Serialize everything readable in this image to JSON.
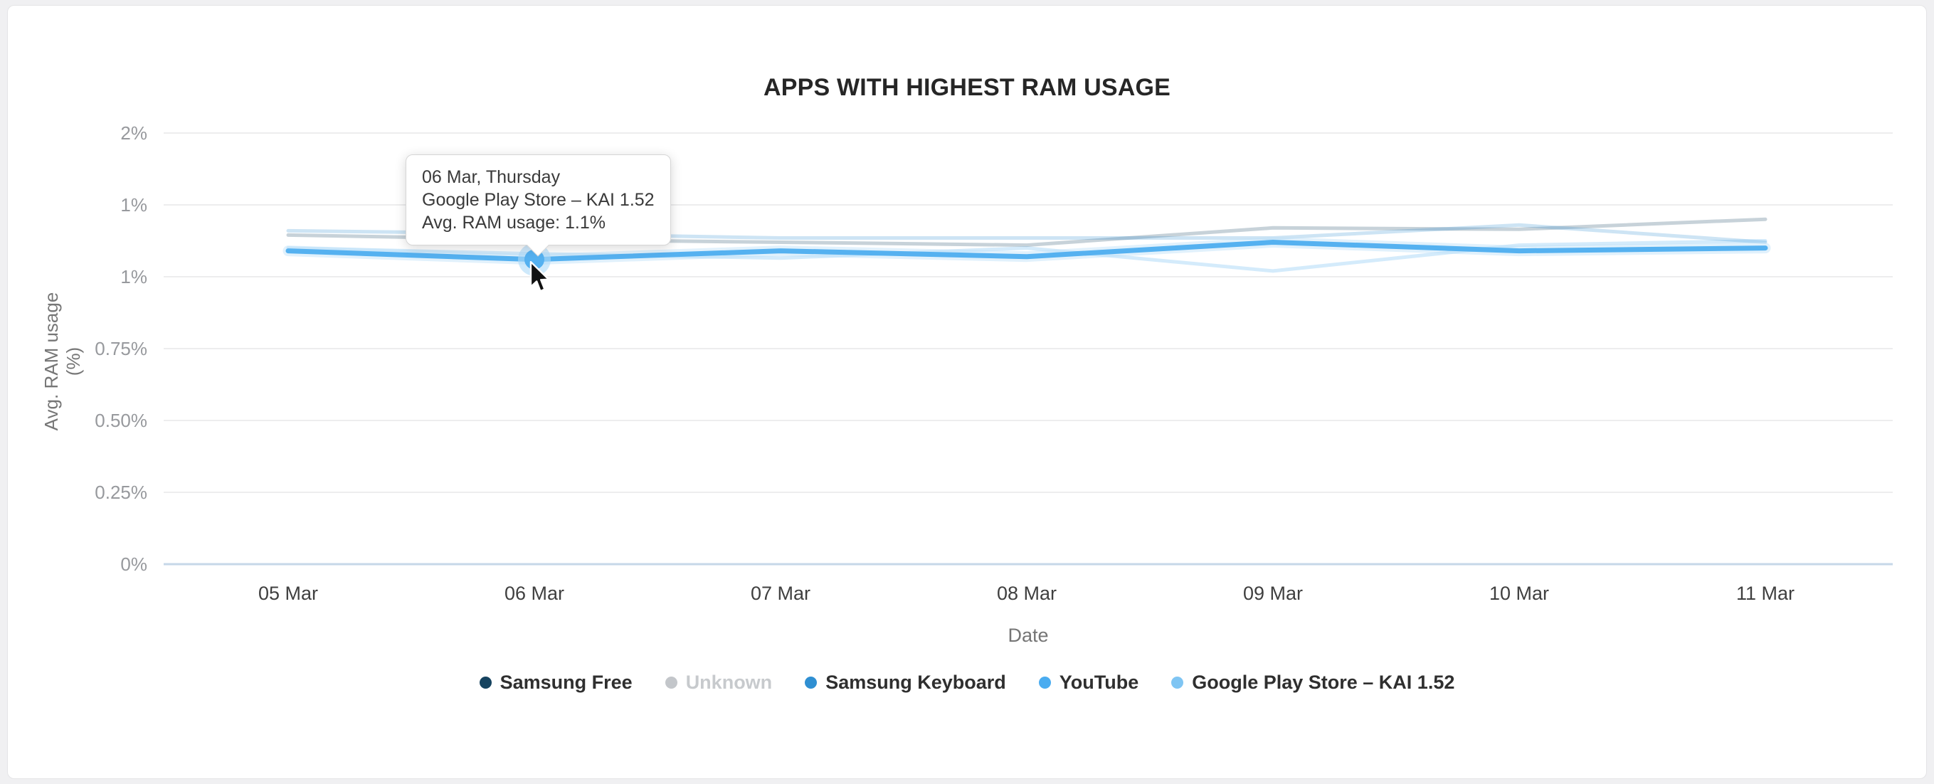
{
  "page": {
    "background": "#f0f0f2",
    "card_background": "#ffffff"
  },
  "chart": {
    "title": "APPS WITH HIGHEST RAM USAGE",
    "x_axis_label": "Date",
    "y_axis_label": "Avg. RAM usage (%)"
  },
  "tooltip": {
    "date_label": "06 Mar, Thursday",
    "series_label": "Google Play Store – KAI 1.52",
    "value_label": "Avg. RAM usage: 1.1%"
  },
  "legend": {
    "items": [
      {
        "label": "Samsung Free",
        "color": "#16435f",
        "label_color": "#2f2f2f",
        "disabled": false
      },
      {
        "label": "Unknown",
        "color": "#c3c6ca",
        "label_color": "#c7cacd",
        "disabled": true
      },
      {
        "label": "Samsung Keyboard",
        "color": "#2f8fd2",
        "label_color": "#2f2f2f",
        "disabled": false
      },
      {
        "label": "YouTube",
        "color": "#4aacf0",
        "label_color": "#2f2f2f",
        "disabled": false
      },
      {
        "label": "Google Play Store – KAI 1.52",
        "color": "#7fc5f3",
        "label_color": "#2f2f2f",
        "disabled": false
      }
    ]
  },
  "chart_data": {
    "type": "line",
    "title": "APPS WITH HIGHEST RAM USAGE",
    "xlabel": "Date",
    "ylabel": "Avg. RAM usage (%)",
    "categories": [
      "05 Mar",
      "06 Mar",
      "07 Mar",
      "08 Mar",
      "09 Mar",
      "10 Mar",
      "11 Mar"
    ],
    "y_ticks": [
      {
        "value": 0,
        "label": "0%"
      },
      {
        "value": 0.25,
        "label": "0.25%"
      },
      {
        "value": 0.5,
        "label": "0.50%"
      },
      {
        "value": 0.75,
        "label": "0.75%"
      },
      {
        "value": 1.0,
        "label": "1%"
      },
      {
        "value": 1.25,
        "label": "1%"
      },
      {
        "value": 1.5,
        "label": "2%"
      }
    ],
    "ylim": [
      0,
      1.5
    ],
    "grid": "horizontal",
    "legend_position": "bottom",
    "grid_color": "#ededee",
    "axis_line_color": "#c6d7e8",
    "highlighted_series": "Google Play Store – KAI 1.52",
    "highlighted_point": {
      "series": "Google Play Store – KAI 1.52",
      "category": "06 Mar",
      "value": 1.06,
      "display_value": "1.1%"
    },
    "series": [
      {
        "name": "Samsung Free",
        "color": "#16435f",
        "dimmed": true,
        "hidden": false,
        "values": [
          1.145,
          1.13,
          1.12,
          1.11,
          1.17,
          1.165,
          1.2
        ]
      },
      {
        "name": "Unknown",
        "color": "#c3c6ca",
        "dimmed": false,
        "hidden": true,
        "values": []
      },
      {
        "name": "Samsung Keyboard",
        "color": "#2f8fd2",
        "dimmed": true,
        "hidden": false,
        "values": [
          1.16,
          1.15,
          1.135,
          1.135,
          1.135,
          1.18,
          1.12
        ]
      },
      {
        "name": "YouTube",
        "color": "#4aacf0",
        "dimmed": true,
        "hidden": false,
        "values": [
          1.1,
          1.08,
          1.065,
          1.1,
          1.02,
          1.11,
          1.125
        ]
      },
      {
        "name": "Google Play Store – KAI 1.52",
        "color": "#55b1f0",
        "dimmed": false,
        "hidden": false,
        "values": [
          1.09,
          1.06,
          1.09,
          1.07,
          1.12,
          1.09,
          1.1
        ]
      }
    ]
  }
}
